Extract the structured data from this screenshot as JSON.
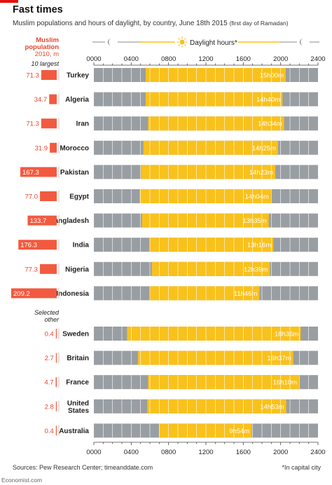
{
  "header": {
    "title": "Fast times",
    "subtitle": "Muslim populations and hours of daylight, by country, June 18th 2015",
    "subtitle_note": "(first day of Ramadan)"
  },
  "left_header": {
    "line1": "Muslim",
    "line2": "population",
    "line3": "2010, m",
    "group1_label": "10 largest",
    "group2_line1": "Selected",
    "group2_line2": "other"
  },
  "legend": {
    "daylight_label": "Daylight hours*"
  },
  "axis": {
    "ticks": [
      "0000",
      "0400",
      "0800",
      "1200",
      "1600",
      "2000",
      "2400"
    ]
  },
  "footer": {
    "source": "Sources: Pew Research Center; timeanddate.com",
    "note": "*In capital city",
    "brand": "Economist.com"
  },
  "colors": {
    "night": "#999ea3",
    "daylight": "#f9c11c",
    "population": "#f25a3f",
    "population_text": "#e8452b",
    "hour_divider": "#ffffff",
    "axis_text": "#222222"
  },
  "chart_data": {
    "type": "bar",
    "title": "Fast times",
    "x_unit": "hour of day (24h)",
    "xlim": [
      0,
      24
    ],
    "groups": [
      {
        "label": "10 largest",
        "rows": [
          {
            "country": "Turkey",
            "population": "71.3",
            "population_m": 71.3,
            "sunrise": 5.55,
            "sunset": 20.55,
            "daylight": "15h00m"
          },
          {
            "country": "Algeria",
            "population": "34.7",
            "population_m": 34.7,
            "sunrise": 5.55,
            "sunset": 20.2,
            "daylight": "14h40m"
          },
          {
            "country": "Iran",
            "population": "71.3",
            "population_m": 71.3,
            "sunrise": 5.8,
            "sunset": 20.37,
            "daylight": "14h34m"
          },
          {
            "country": "Morocco",
            "population": "31.9",
            "population_m": 31.9,
            "sunrise": 5.3,
            "sunset": 19.72,
            "daylight": "14h25m"
          },
          {
            "country": "Pakistan",
            "population": "167.3",
            "population_m": 167.3,
            "sunrise": 5.05,
            "sunset": 19.43,
            "daylight": "14h23m"
          },
          {
            "country": "Egypt",
            "population": "77.0",
            "population_m": 77.0,
            "sunrise": 4.9,
            "sunset": 18.97,
            "daylight": "14h04m"
          },
          {
            "country": "Bangladesh",
            "population": "133.7",
            "population_m": 133.7,
            "sunrise": 5.15,
            "sunset": 18.73,
            "daylight": "13h35m"
          },
          {
            "country": "India",
            "population": "176.3",
            "population_m": 176.3,
            "sunrise": 5.95,
            "sunset": 19.22,
            "daylight": "13h16m"
          },
          {
            "country": "Nigeria",
            "population": "77.3",
            "population_m": 77.3,
            "sunrise": 6.2,
            "sunset": 18.85,
            "daylight": "12h39m"
          },
          {
            "country": "Indonesia",
            "population": "209.2",
            "population_m": 209.2,
            "sunrise": 5.97,
            "sunset": 17.73,
            "daylight": "11h46m"
          }
        ]
      },
      {
        "label": "Selected other",
        "rows": [
          {
            "country": "Sweden",
            "population": "0.4",
            "population_m": 0.4,
            "sunrise": 3.55,
            "sunset": 22.15,
            "daylight": "18h36m"
          },
          {
            "country": "Britain",
            "population": "2.7",
            "population_m": 2.7,
            "sunrise": 4.72,
            "sunset": 21.35,
            "daylight": "16h37m"
          },
          {
            "country": "France",
            "population": "4.7",
            "population_m": 4.7,
            "sunrise": 5.8,
            "sunset": 21.97,
            "daylight": "16h10m"
          },
          {
            "country": "United States",
            "population": "2.8",
            "population_m": 2.8,
            "sunrise": 5.72,
            "sunset": 20.6,
            "daylight": "14h53m"
          },
          {
            "country": "Australia",
            "population": "0.4",
            "population_m": 0.4,
            "sunrise": 7.0,
            "sunset": 16.9,
            "daylight": "9h54m"
          }
        ]
      }
    ]
  }
}
